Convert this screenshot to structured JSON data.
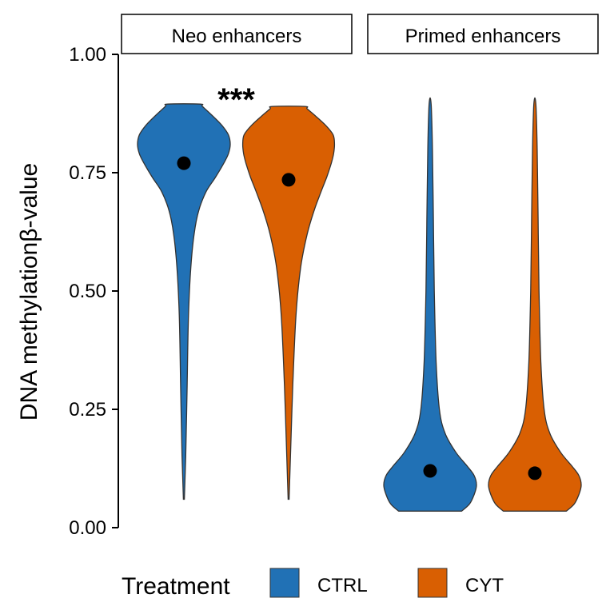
{
  "colors": {
    "CTRL": "#2171B5",
    "CYT": "#D95F02"
  },
  "chart_data": {
    "type": "violin",
    "ylabel": "DNA methylationβ-value",
    "ylim": [
      0,
      1
    ],
    "yticks": [
      "0.00",
      "0.25",
      "0.50",
      "0.75",
      "1.00"
    ],
    "panels": [
      {
        "label": "Neo enhancers",
        "significance": "***",
        "groups": [
          {
            "treatment": "CTRL",
            "median": 0.77,
            "range": [
              0.06,
              0.895
            ],
            "density_y": [
              0.06,
              0.15,
              0.3,
              0.45,
              0.55,
              0.62,
              0.67,
              0.71,
              0.74,
              0.77,
              0.79,
              0.81,
              0.83,
              0.85,
              0.87,
              0.89,
              0.895
            ],
            "density_w": [
              0.01,
              0.04,
              0.07,
              0.1,
              0.15,
              0.22,
              0.32,
              0.48,
              0.68,
              0.86,
              0.96,
              1.0,
              0.96,
              0.82,
              0.62,
              0.4,
              0.35
            ]
          },
          {
            "treatment": "CYT",
            "median": 0.735,
            "range": [
              0.06,
              0.89
            ],
            "density_y": [
              0.06,
              0.15,
              0.3,
              0.45,
              0.55,
              0.62,
              0.67,
              0.71,
              0.74,
              0.77,
              0.79,
              0.81,
              0.83,
              0.85,
              0.87,
              0.885,
              0.89
            ],
            "density_w": [
              0.01,
              0.04,
              0.09,
              0.16,
              0.26,
              0.4,
              0.55,
              0.7,
              0.82,
              0.92,
              0.97,
              0.99,
              0.96,
              0.8,
              0.58,
              0.4,
              0.35
            ]
          }
        ]
      },
      {
        "label": "Primed enhancers",
        "significance": "",
        "groups": [
          {
            "treatment": "CTRL",
            "median": 0.12,
            "range": [
              0.035,
              0.905
            ],
            "density_y": [
              0.035,
              0.05,
              0.07,
              0.09,
              0.11,
              0.13,
              0.16,
              0.2,
              0.25,
              0.35,
              0.5,
              0.65,
              0.8,
              0.88,
              0.905
            ],
            "density_w": [
              0.68,
              0.85,
              0.95,
              1.0,
              0.95,
              0.8,
              0.55,
              0.32,
              0.2,
              0.13,
              0.09,
              0.07,
              0.05,
              0.03,
              0.01
            ]
          },
          {
            "treatment": "CYT",
            "median": 0.115,
            "range": [
              0.035,
              0.905
            ],
            "density_y": [
              0.035,
              0.05,
              0.07,
              0.09,
              0.11,
              0.13,
              0.16,
              0.2,
              0.25,
              0.35,
              0.5,
              0.65,
              0.8,
              0.88,
              0.905
            ],
            "density_w": [
              0.68,
              0.85,
              0.95,
              1.0,
              0.95,
              0.8,
              0.55,
              0.32,
              0.2,
              0.13,
              0.09,
              0.07,
              0.05,
              0.03,
              0.01
            ]
          }
        ]
      }
    ],
    "legend": {
      "title": "Treatment",
      "position": "bottom",
      "entries": [
        "CTRL",
        "CYT"
      ]
    }
  }
}
